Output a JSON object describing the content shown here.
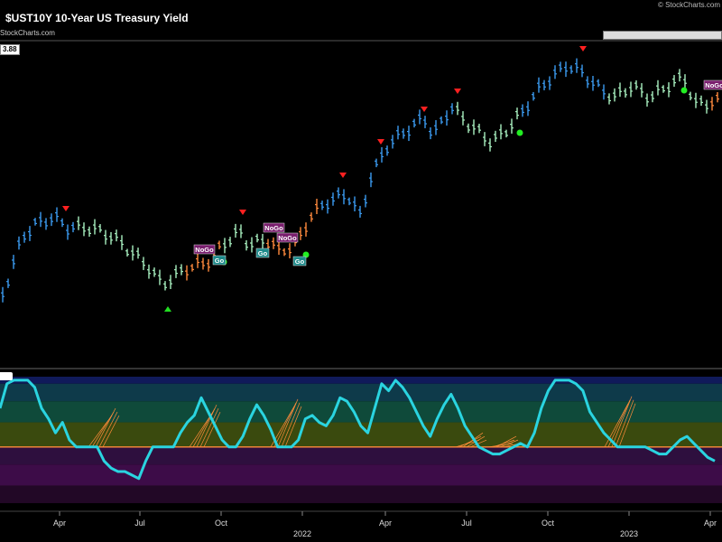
{
  "header": {
    "title": "$UST10Y 10-Year US Treasury Yield",
    "subtitle": "StockCharts.com",
    "copyright": "© StockCharts.com",
    "last_value": "3.88"
  },
  "colors": {
    "strong_go": "#3b9bf0",
    "go": "#8fe3ec",
    "weak_go": "#a8f0c0",
    "nogo": "#ff8a3d",
    "weak_nogo": "#e27bd6",
    "go_label_bg": "#1d8a8a",
    "nogo_label_bg": "#7a1f6e",
    "oscillator": "#2ad4e0",
    "zero_line": "#ff8c3a"
  },
  "chart_data": [
    {
      "type": "line",
      "title": "$UST10Y 10-Year US Treasury Yield",
      "x_ticks": [
        "Apr",
        "Jul",
        "Oct",
        "2022",
        "Apr",
        "Jul",
        "Oct",
        "2023",
        "Apr"
      ],
      "trend_segments": [
        {
          "state": "strong_go",
          "from": 0,
          "to": 13
        },
        {
          "state": "weak_go",
          "from": 14,
          "to": 33
        },
        {
          "state": "nogo",
          "from": 34,
          "to": 40
        },
        {
          "state": "weak_go",
          "from": 41,
          "to": 48
        },
        {
          "state": "nogo",
          "from": 49,
          "to": 58
        },
        {
          "state": "strong_go",
          "from": 59,
          "to": 83
        },
        {
          "state": "weak_go",
          "from": 84,
          "to": 95
        },
        {
          "state": "strong_go",
          "from": 96,
          "to": 111
        },
        {
          "state": "weak_go",
          "from": 112,
          "to": 130
        },
        {
          "state": "nogo",
          "from": 131,
          "to": 133
        }
      ],
      "signals": [
        {
          "label": "NoGo",
          "kind": "nogo"
        },
        {
          "label": "Go",
          "kind": "go"
        },
        {
          "label": "NoGo",
          "kind": "nogo"
        },
        {
          "label": "Go",
          "kind": "go"
        },
        {
          "label": "NoGo",
          "kind": "nogo"
        },
        {
          "label": "Go",
          "kind": "go"
        },
        {
          "label": "NoGo",
          "kind": "nogo"
        }
      ],
      "last_value": 3.88
    },
    {
      "type": "line",
      "series": [
        {
          "values": [
            0.55,
            0.9,
            0.95,
            0.95,
            0.95,
            0.85,
            0.55,
            0.4,
            0.2,
            0.35,
            0.1,
            0.0,
            0.0,
            0.0,
            0.0,
            -0.2,
            -0.3,
            -0.35,
            -0.35,
            -0.4,
            -0.45,
            -0.2,
            0.0,
            0.0,
            0.0,
            0.0,
            0.2,
            0.35,
            0.45,
            0.7,
            0.5,
            0.3,
            0.1,
            0.0,
            0.0,
            0.15,
            0.4,
            0.6,
            0.45,
            0.25,
            0.0,
            0.0,
            0.0,
            0.1,
            0.4,
            0.45,
            0.35,
            0.3,
            0.45,
            0.7,
            0.65,
            0.5,
            0.3,
            0.2,
            0.55,
            0.9,
            0.8,
            0.95,
            0.85,
            0.7,
            0.5,
            0.3,
            0.15,
            0.4,
            0.6,
            0.75,
            0.55,
            0.3,
            0.15,
            0.0,
            -0.05,
            -0.1,
            -0.1,
            -0.05,
            0.0,
            0.05,
            0.0,
            0.2,
            0.55,
            0.8,
            0.95,
            0.95,
            0.95,
            0.9,
            0.8,
            0.5,
            0.35,
            0.2,
            0.1,
            0.0,
            0.0,
            0.0,
            0.0,
            0.0,
            -0.05,
            -0.1,
            -0.1,
            0.0,
            0.1,
            0.15,
            0.05,
            -0.05,
            -0.15,
            -0.2
          ]
        }
      ],
      "zero_line": 0.0,
      "bands": [
        {
          "name": "strong_go",
          "from": 0.9,
          "to": 1.0
        },
        {
          "name": "go",
          "from": 0.65,
          "to": 0.9
        },
        {
          "name": "weak_go",
          "from": 0.35,
          "to": 0.65
        },
        {
          "name": "weak_go_low",
          "from": 0.0,
          "to": 0.35
        },
        {
          "name": "weak_nogo",
          "from": -0.25,
          "to": 0.0
        },
        {
          "name": "nogo",
          "from": -0.55,
          "to": -0.25
        },
        {
          "name": "strong_nogo",
          "from": -0.8,
          "to": -0.55
        }
      ]
    }
  ]
}
